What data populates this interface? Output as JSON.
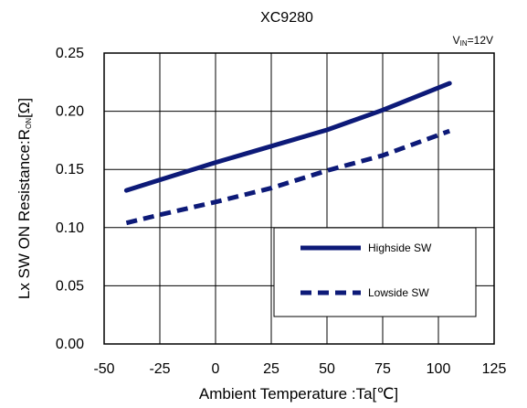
{
  "chart_data": {
    "type": "line",
    "title": "XC9280",
    "condition": {
      "main": "V",
      "sub": "IN",
      "rest": "=12V"
    },
    "xlabel": "Ambient Temperature :Ta[℃]",
    "ylabel": {
      "pre": "Lx SW ON Resistance:R",
      "sub": "ON",
      "post": "[Ω]"
    },
    "xlim": [
      -50,
      125
    ],
    "ylim": [
      0,
      0.25
    ],
    "xticks": [
      "-50",
      "-25",
      "0",
      "25",
      "50",
      "75",
      "100",
      "125"
    ],
    "yticks": [
      "0.00",
      "0.05",
      "0.10",
      "0.15",
      "0.20",
      "0.25"
    ],
    "grid": true,
    "legend_position": "lower-right",
    "series": [
      {
        "name": "Highside SW",
        "style": "solid",
        "color": "#0d1a78",
        "x": [
          -40,
          -25,
          0,
          25,
          50,
          75,
          105
        ],
        "y": [
          0.132,
          0.141,
          0.156,
          0.17,
          0.184,
          0.201,
          0.224
        ]
      },
      {
        "name": "Lowside SW",
        "style": "dashed",
        "color": "#0d1a78",
        "x": [
          -40,
          -25,
          0,
          25,
          50,
          75,
          105
        ],
        "y": [
          0.104,
          0.111,
          0.122,
          0.134,
          0.149,
          0.162,
          0.183
        ]
      }
    ]
  }
}
